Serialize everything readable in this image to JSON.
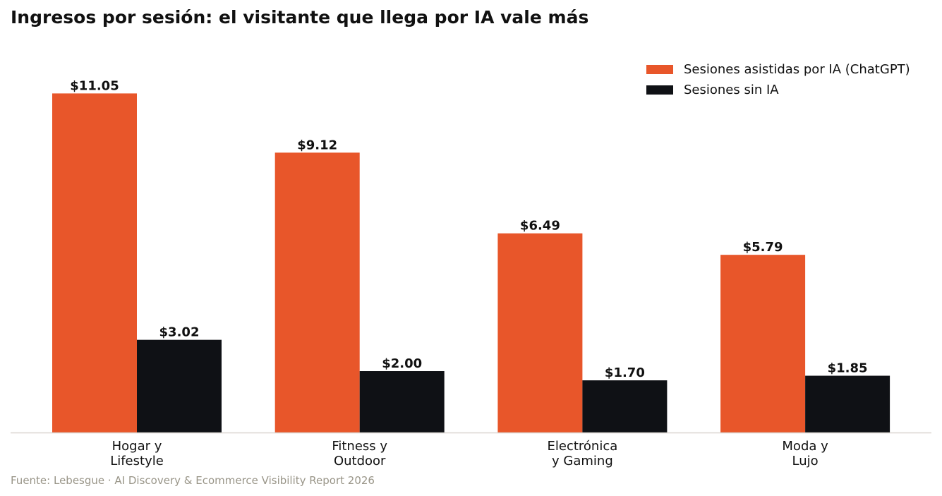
{
  "title": "Ingresos por sesión: el visitante que llega por IA vale más",
  "source": "Fuente: Lebesgue · AI Discovery & Ecommerce Visibility Report 2026",
  "colors": {
    "ai": "#e8562a",
    "no_ai": "#0f1115",
    "axis": "#d9d6d0"
  },
  "chart_data": {
    "type": "bar",
    "title": "Ingresos por sesión: el visitante que llega por IA vale más",
    "xlabel": "",
    "ylabel": "",
    "categories": [
      [
        "Hogar y",
        "Lifestyle"
      ],
      [
        "Fitness y",
        "Outdoor"
      ],
      [
        "Electrónica",
        "y Gaming"
      ],
      [
        "Moda y",
        "Lujo"
      ]
    ],
    "series": [
      {
        "name": "Sesiones asistidas por IA (ChatGPT)",
        "values": [
          11.05,
          9.12,
          6.49,
          5.79
        ],
        "labels": [
          "$11.05",
          "$9.12",
          "$6.49",
          "$5.79"
        ]
      },
      {
        "name": "Sesiones sin IA",
        "values": [
          3.02,
          2.0,
          1.7,
          1.85
        ],
        "labels": [
          "$3.02",
          "$2.00",
          "$1.70",
          "$1.85"
        ]
      }
    ],
    "ylim": [
      0,
      12.6
    ],
    "grid": false,
    "legend_position": "top-right"
  }
}
